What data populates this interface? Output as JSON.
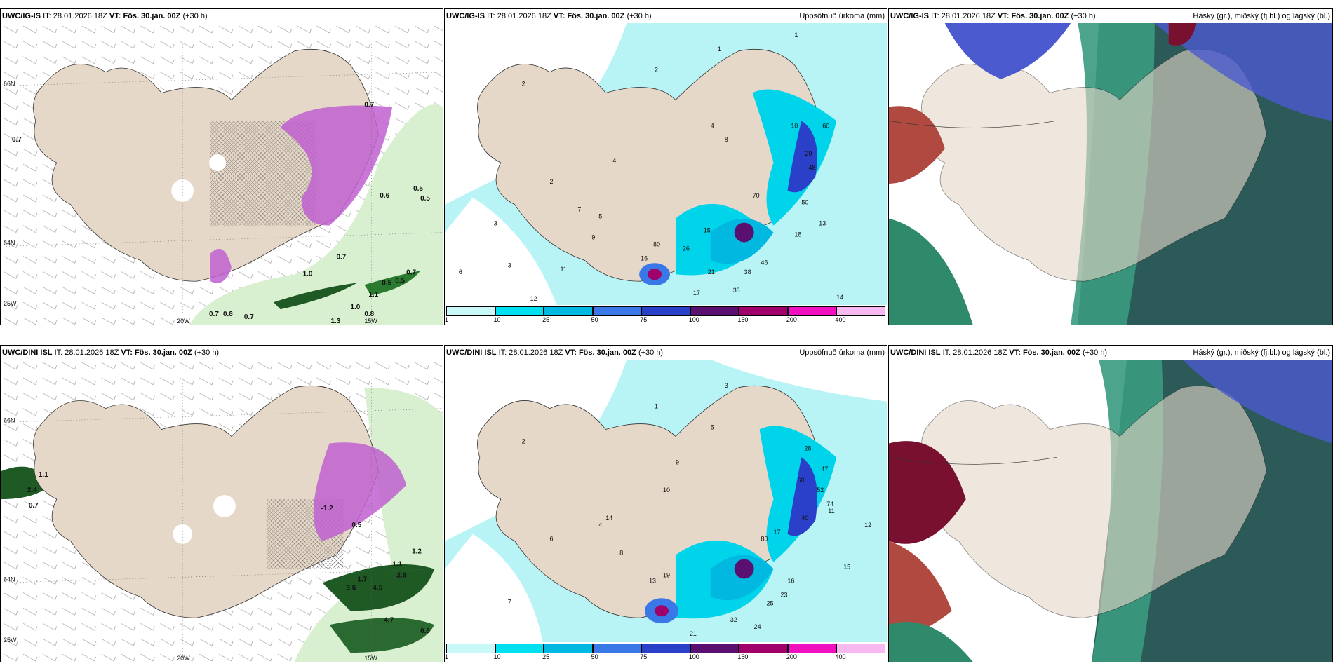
{
  "panels": {
    "p1": {
      "model": "UWC/IG-IS",
      "it_label": "IT:",
      "it": "28.01.2026 18Z",
      "vt_label": "VT:",
      "vt": "Fös. 30.jan. 00Z",
      "lead": "(+30 h)",
      "right": ""
    },
    "p2": {
      "model": "UWC/IG-IS",
      "it_label": "IT:",
      "it": "28.01.2026 18Z",
      "vt_label": "VT:",
      "vt": "Fös. 30.jan. 00Z",
      "lead": "(+30 h)",
      "right": "Uppsöfnuð úrkoma (mm)"
    },
    "p3": {
      "model": "UWC/IG-IS",
      "it_label": "IT:",
      "it": "28.01.2026 18Z",
      "vt_label": "VT:",
      "vt": "Fös. 30.jan. 00Z",
      "lead": "(+30 h)",
      "right": "Háský (gr.), miðský (fj.bl.) og lágský (bl.)"
    },
    "p4": {
      "model": "UWC/DINI ISL",
      "it_label": "IT:",
      "it": "28.01.2026 18Z",
      "vt_label": "VT:",
      "vt": "Fös. 30.jan. 00Z",
      "lead": "(+30 h)",
      "right": ""
    },
    "p5": {
      "model": "UWC/DINI ISL",
      "it_label": "IT:",
      "it": "28.01.2026 18Z",
      "vt_label": "VT:",
      "vt": "Fös. 30.jan. 00Z",
      "lead": "(+30 h)",
      "right": "Uppsöfnuð úrkoma (mm)"
    },
    "p6": {
      "model": "UWC/DINI ISL",
      "it_label": "IT:",
      "it": "28.01.2026 18Z",
      "vt_label": "VT:",
      "vt": "Fös. 30.jan. 00Z",
      "lead": "(+30 h)",
      "right": "Háský (gr.), miðský (fj.bl.) og lágský (bl.)"
    }
  },
  "axis_labels": {
    "lat66": "66N",
    "lat64": "64N",
    "lat_s": "25W",
    "lon20": "20W",
    "lon15": "15W"
  },
  "colorbar": {
    "ticks": [
      "1",
      "10",
      "25",
      "50",
      "75",
      "100",
      "150",
      "200",
      "400"
    ],
    "colors": [
      "#c8f8f8",
      "#00e0ee",
      "#00b8e0",
      "#3a78e8",
      "#2a40c8",
      "#5a1070",
      "#a0006a",
      "#f010c0",
      "#f8b8f0"
    ]
  },
  "colors": {
    "land": "#e6d8c8",
    "precip_light": "#b8f4f6",
    "precip_mid": "#00d4ea",
    "cloud_green": "#2e8a6a",
    "cloud_dark": "#2c5a58",
    "cloud_blue": "#4c5ad0",
    "cloud_red": "#b04a40"
  },
  "p1_values": [
    "0.7",
    "0.7",
    "0.5",
    "0.5",
    "0.7",
    "1.0",
    "1.1",
    "0.7",
    "0.8",
    "0.7",
    "1.0",
    "0.8",
    "0.5",
    "1.3",
    "0.7",
    "0.5",
    "0.6"
  ],
  "p2_values": [
    "2",
    "1",
    "2",
    "4",
    "3",
    "6",
    "2",
    "3",
    "1",
    "4",
    "5",
    "7",
    "8",
    "9",
    "10",
    "16",
    "18",
    "21",
    "26",
    "33",
    "38",
    "46",
    "13",
    "15",
    "12",
    "11",
    "14",
    "17",
    "29",
    "48",
    "50",
    "60",
    "70",
    "80"
  ],
  "p4_values": [
    "1.1",
    "2.4",
    "0.7",
    "-1.2",
    "3.6",
    "4.5",
    "2.8",
    "1.2",
    "1.1",
    "6.6",
    "1.7",
    "4.7",
    "0.5"
  ],
  "p5_values": [
    "3",
    "2",
    "1",
    "4",
    "5",
    "6",
    "7",
    "8",
    "10",
    "14",
    "9",
    "13",
    "19",
    "16",
    "17",
    "23",
    "25",
    "32",
    "24",
    "21",
    "12",
    "15",
    "11",
    "28",
    "40",
    "47",
    "52",
    "74",
    "80",
    "60"
  ]
}
